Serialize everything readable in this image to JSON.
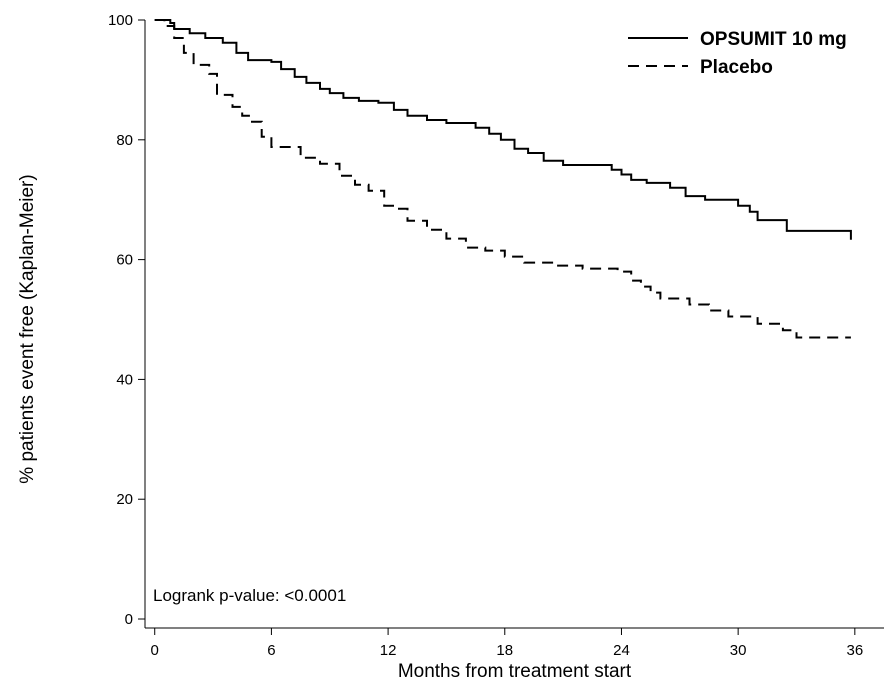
{
  "chart_data": {
    "type": "line",
    "xlabel": "Months from treatment start",
    "ylabel": "% patients event free (Kaplan-Meier)",
    "xlim": [
      -0.5,
      37.5
    ],
    "ylim": [
      -1.5,
      100
    ],
    "x_ticks": [
      0,
      6,
      12,
      18,
      24,
      30,
      36
    ],
    "y_ticks": [
      0,
      20,
      40,
      60,
      80,
      100
    ],
    "x_tick_labels": [
      "0",
      "6",
      "12",
      "18",
      "24",
      "30",
      "36"
    ],
    "y_tick_labels": [
      "0",
      "20",
      "40",
      "60",
      "80",
      "100"
    ],
    "legend_position": "top-right",
    "grid": false,
    "annotation": "Logrank p-value: <0.0001",
    "series": [
      {
        "name": "OPSUMIT 10 mg",
        "style": "solid",
        "color": "#000000",
        "points": [
          [
            0,
            100
          ],
          [
            0.8,
            99.5
          ],
          [
            1.0,
            98.5
          ],
          [
            1.8,
            97.8
          ],
          [
            2.6,
            97.0
          ],
          [
            3.5,
            96.2
          ],
          [
            4.2,
            94.5
          ],
          [
            4.8,
            93.3
          ],
          [
            6.0,
            93.0
          ],
          [
            6.5,
            91.8
          ],
          [
            7.2,
            90.5
          ],
          [
            7.8,
            89.5
          ],
          [
            8.5,
            88.5
          ],
          [
            9.0,
            87.8
          ],
          [
            9.7,
            87.0
          ],
          [
            10.5,
            86.5
          ],
          [
            11.5,
            86.2
          ],
          [
            12.3,
            85.0
          ],
          [
            13.0,
            84.0
          ],
          [
            14.0,
            83.3
          ],
          [
            15.0,
            82.8
          ],
          [
            16.5,
            82.0
          ],
          [
            17.2,
            81.0
          ],
          [
            17.8,
            80.0
          ],
          [
            18.5,
            78.5
          ],
          [
            19.2,
            77.8
          ],
          [
            20.0,
            76.5
          ],
          [
            21.0,
            75.8
          ],
          [
            23.5,
            75.0
          ],
          [
            24.0,
            74.2
          ],
          [
            24.5,
            73.3
          ],
          [
            25.3,
            72.8
          ],
          [
            26.5,
            72.0
          ],
          [
            27.3,
            70.6
          ],
          [
            28.3,
            70.0
          ],
          [
            30.0,
            69.0
          ],
          [
            30.6,
            68.0
          ],
          [
            31.0,
            66.6
          ],
          [
            32.5,
            64.8
          ],
          [
            35.8,
            64.8
          ],
          [
            35.8,
            63.3
          ]
        ]
      },
      {
        "name": "Placebo",
        "style": "dashed",
        "color": "#000000",
        "points": [
          [
            0,
            100
          ],
          [
            0.5,
            99.0
          ],
          [
            1.0,
            97.0
          ],
          [
            1.5,
            94.5
          ],
          [
            2.0,
            92.5
          ],
          [
            2.8,
            91.0
          ],
          [
            3.2,
            87.5
          ],
          [
            4.0,
            85.5
          ],
          [
            4.5,
            84.0
          ],
          [
            5.0,
            83.0
          ],
          [
            5.5,
            80.5
          ],
          [
            6.0,
            78.8
          ],
          [
            7.5,
            77.0
          ],
          [
            8.5,
            76.0
          ],
          [
            9.5,
            74.0
          ],
          [
            10.3,
            72.5
          ],
          [
            11.0,
            71.5
          ],
          [
            11.8,
            69.0
          ],
          [
            12.5,
            68.5
          ],
          [
            13.0,
            66.5
          ],
          [
            14.0,
            65.0
          ],
          [
            15.0,
            63.5
          ],
          [
            16.0,
            62.0
          ],
          [
            17.0,
            61.5
          ],
          [
            18.0,
            60.5
          ],
          [
            19.0,
            59.5
          ],
          [
            20.5,
            59.0
          ],
          [
            22.0,
            58.5
          ],
          [
            23.8,
            58.0
          ],
          [
            24.5,
            56.5
          ],
          [
            25.0,
            55.5
          ],
          [
            25.5,
            54.5
          ],
          [
            26.0,
            53.5
          ],
          [
            27.5,
            52.5
          ],
          [
            28.5,
            51.5
          ],
          [
            29.5,
            50.5
          ],
          [
            31.0,
            49.3
          ],
          [
            32.3,
            48.2
          ],
          [
            33.0,
            47.0
          ],
          [
            35.8,
            47.0
          ]
        ]
      }
    ]
  }
}
